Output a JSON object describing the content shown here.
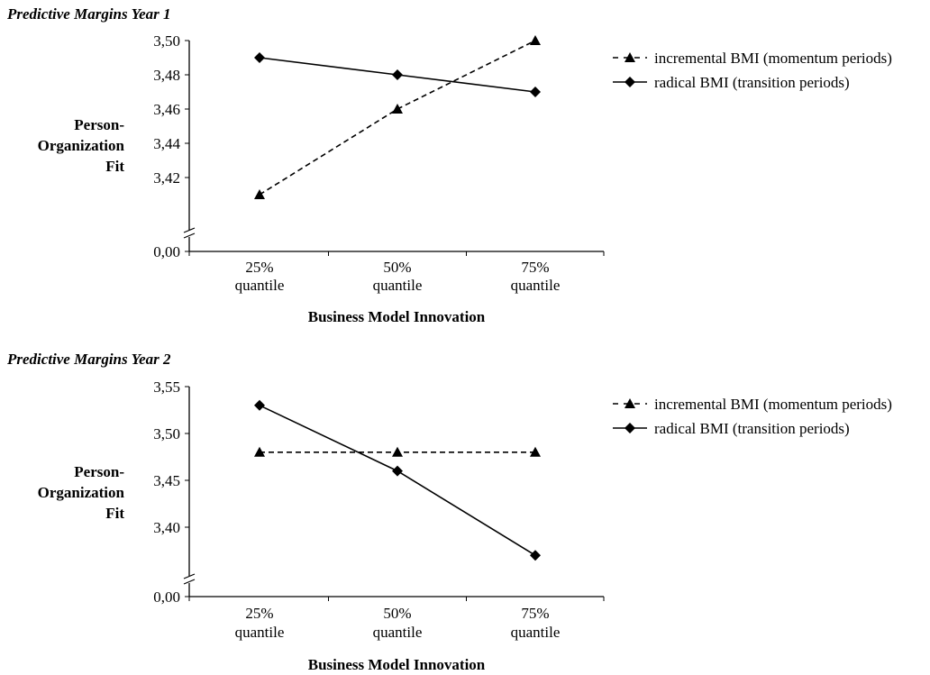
{
  "chart_data": [
    {
      "type": "line",
      "title": "Predictive Margins Year 1",
      "xlabel": "Business Model Innovation",
      "ylabel_lines": [
        "Person-",
        "Organization",
        "Fit"
      ],
      "categories": [
        [
          "25%",
          "quantile"
        ],
        [
          "50%",
          "quantile"
        ],
        [
          "75%",
          "quantile"
        ]
      ],
      "yticks": [
        "3,50",
        "3,48",
        "3,46",
        "3,44",
        "3,42"
      ],
      "ytick_values": [
        3.5,
        3.48,
        3.46,
        3.44,
        3.42
      ],
      "ybreak_label": "0,00",
      "ylim": [
        3.4,
        3.5
      ],
      "grid": false,
      "legend_position": "right",
      "series": [
        {
          "name": "incremental BMI (momentum periods)",
          "values": [
            3.41,
            3.46,
            3.5
          ],
          "line_style": "dashed",
          "marker": "triangle",
          "color": "#000000"
        },
        {
          "name": "radical BMI (transition periods)",
          "values": [
            3.49,
            3.48,
            3.47
          ],
          "line_style": "solid",
          "marker": "diamond",
          "color": "#000000"
        }
      ]
    },
    {
      "type": "line",
      "title": "Predictive Margins Year 2",
      "xlabel": "Business Model Innovation",
      "ylabel_lines": [
        "Person-",
        "Organization",
        "Fit"
      ],
      "categories": [
        [
          "25%",
          "quantile"
        ],
        [
          "50%",
          "quantile"
        ],
        [
          "75%",
          "quantile"
        ]
      ],
      "yticks": [
        "3,55",
        "3,50",
        "3,45",
        "3,40"
      ],
      "ytick_values": [
        3.55,
        3.5,
        3.45,
        3.4
      ],
      "ybreak_label": "0,00",
      "ylim": [
        3.35,
        3.55
      ],
      "grid": false,
      "legend_position": "right",
      "series": [
        {
          "name": "incremental BMI (momentum periods)",
          "values": [
            3.48,
            3.48,
            3.48
          ],
          "line_style": "dashed",
          "marker": "triangle",
          "color": "#000000"
        },
        {
          "name": "radical BMI (transition periods)",
          "values": [
            3.53,
            3.46,
            3.37
          ],
          "line_style": "solid",
          "marker": "diamond",
          "color": "#000000"
        }
      ]
    }
  ]
}
